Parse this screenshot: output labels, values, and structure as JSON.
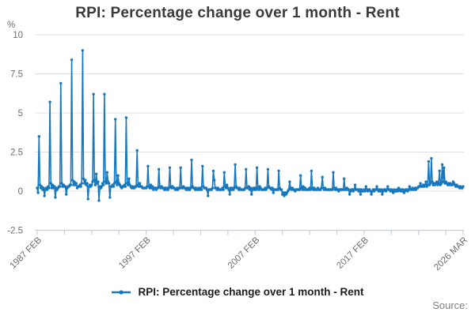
{
  "title": "RPI: Percentage change over 1 month - Rent",
  "y_axis_unit_label": "%",
  "legend": {
    "label": "RPI: Percentage change over 1 month - Rent"
  },
  "source_label": "Source:",
  "colors": {
    "line": "#1778be",
    "grid": "#e0e0e0",
    "axis": "#c6cfe6",
    "title_text": "#3a3a3a",
    "tick_text": "#6e6e6e",
    "legend_text": "#1c1c1c",
    "source_text": "#7f7f7f"
  },
  "chart_data": {
    "type": "line",
    "title": "RPI: Percentage change over 1 month - Rent",
    "series_name": "RPI: Percentage change over 1 month - Rent",
    "xlabel": "",
    "ylabel": "%",
    "grid": "horizontal",
    "legend_position": "bottom",
    "start": "1987-02",
    "end": "2026-03",
    "frequency": "monthly",
    "ylim": [
      -2.5,
      10
    ],
    "y_ticks": [
      -2.5,
      0,
      2.5,
      5,
      7.5,
      10
    ],
    "minor_tick_interval_months": 30,
    "x_tick_labels": [
      {
        "month_index": 0,
        "label": "1987 FEB"
      },
      {
        "month_index": 120,
        "label": "1997 FEB"
      },
      {
        "month_index": 240,
        "label": "2007 FEB"
      },
      {
        "month_index": 360,
        "label": "2017 FEB"
      },
      {
        "month_index": 469,
        "label": "2026 MAR"
      }
    ],
    "annual_april_peaks": {
      "1987": 3.5,
      "1988": 5.7,
      "1989": 6.9,
      "1990": 8.4,
      "1991": 9.0,
      "1992": 6.2,
      "1993": 6.2,
      "1994": 4.6,
      "1995": 4.7,
      "1996": 2.6,
      "2023": 2.1,
      "2024": 1.7
    },
    "values": [
      0.2,
      -0.1,
      3.5,
      0.4,
      0.2,
      0.3,
      0.1,
      0.2,
      -0.3,
      0.1,
      0.2,
      0.1,
      0.3,
      0.2,
      5.7,
      0.5,
      0.2,
      0.4,
      0.2,
      0.3,
      -0.4,
      0.2,
      0.1,
      0.2,
      0.3,
      0.3,
      6.9,
      0.5,
      0.3,
      0.4,
      0.3,
      0.3,
      -0.2,
      0.2,
      0.3,
      0.3,
      0.4,
      0.4,
      8.4,
      0.7,
      0.4,
      0.6,
      0.4,
      0.5,
      0.2,
      0.3,
      0.3,
      0.4,
      0.3,
      0.5,
      9.0,
      0.8,
      0.5,
      0.7,
      0.4,
      0.5,
      -0.5,
      0.3,
      0.4,
      0.3,
      0.4,
      0.6,
      6.2,
      0.7,
      0.4,
      1.1,
      0.5,
      0.6,
      -0.6,
      0.3,
      0.2,
      0.3,
      0.5,
      0.4,
      6.2,
      0.6,
      0.5,
      1.2,
      0.6,
      0.5,
      -0.4,
      0.3,
      0.3,
      0.4,
      0.3,
      0.5,
      4.6,
      0.6,
      0.4,
      1.0,
      0.5,
      0.4,
      0.3,
      0.2,
      0.3,
      0.3,
      0.4,
      0.3,
      4.7,
      0.5,
      0.4,
      0.8,
      0.4,
      0.3,
      0.2,
      0.3,
      0.2,
      0.2,
      0.3,
      0.3,
      2.6,
      0.4,
      0.3,
      0.5,
      0.3,
      0.3,
      0.2,
      0.2,
      0.2,
      0.2,
      0.2,
      0.3,
      1.6,
      0.3,
      0.2,
      0.4,
      0.2,
      0.3,
      0.1,
      0.2,
      0.2,
      0.1,
      0.2,
      0.2,
      1.4,
      0.3,
      0.2,
      0.3,
      0.2,
      0.2,
      0.1,
      0.2,
      0.1,
      0.2,
      0.1,
      0.2,
      1.5,
      0.3,
      0.2,
      0.3,
      0.2,
      0.2,
      0.1,
      0.1,
      0.2,
      0.1,
      0.2,
      0.2,
      1.5,
      0.2,
      0.2,
      0.3,
      0.2,
      0.2,
      0.1,
      0.2,
      0.1,
      0.2,
      0.1,
      0.2,
      2.0,
      0.3,
      0.2,
      0.2,
      0.1,
      0.2,
      0.1,
      0.1,
      0.2,
      0.1,
      0.2,
      0.1,
      1.6,
      0.3,
      0.2,
      0.2,
      0.2,
      0.1,
      -0.3,
      0.1,
      0.1,
      0.1,
      0.1,
      0.2,
      1.3,
      0.7,
      0.2,
      0.2,
      0.1,
      0.2,
      0.1,
      0.1,
      0.1,
      0.1,
      0.2,
      0.1,
      1.2,
      0.3,
      0.2,
      0.4,
      0.2,
      0.1,
      -0.2,
      0.2,
      0.1,
      0.2,
      0.1,
      0.2,
      1.7,
      0.3,
      0.2,
      0.2,
      0.1,
      0.2,
      0.1,
      0.1,
      0.1,
      0.1,
      0.1,
      0.2,
      1.4,
      0.2,
      0.2,
      0.3,
      0.1,
      0.2,
      -0.2,
      0.1,
      0.2,
      0.1,
      0.2,
      0.1,
      1.5,
      0.2,
      0.1,
      0.3,
      0.2,
      0.1,
      0.1,
      0.1,
      0.1,
      0.2,
      0.1,
      0.2,
      1.4,
      0.3,
      0.2,
      0.2,
      0.1,
      0.2,
      -0.1,
      0.1,
      0.1,
      0.1,
      0.1,
      0.1,
      1.3,
      0.2,
      0.1,
      0.1,
      -0.2,
      -0.1,
      -0.3,
      -0.1,
      -0.2,
      -0.1,
      0.0,
      0.1,
      0.6,
      0.2,
      0.1,
      0.2,
      0.1,
      0.1,
      0.0,
      0.1,
      0.1,
      0.1,
      0.1,
      0.1,
      1.0,
      0.2,
      0.1,
      0.3,
      0.1,
      0.2,
      0.1,
      0.1,
      0.1,
      0.1,
      0.2,
      0.1,
      1.3,
      0.2,
      0.1,
      0.2,
      0.1,
      0.1,
      0.1,
      0.2,
      0.1,
      0.1,
      0.1,
      0.2,
      0.9,
      0.2,
      0.1,
      0.2,
      0.1,
      0.1,
      0.1,
      0.1,
      0.1,
      0.1,
      0.1,
      0.1,
      1.2,
      0.2,
      0.1,
      0.2,
      0.1,
      0.1,
      0.0,
      0.1,
      0.1,
      0.1,
      0.1,
      0.1,
      0.8,
      0.1,
      0.1,
      0.2,
      0.1,
      0.1,
      -0.2,
      0.0,
      0.1,
      0.1,
      0.0,
      0.1,
      0.4,
      0.1,
      0.1,
      0.1,
      0.0,
      0.1,
      -0.2,
      0.1,
      0.0,
      0.0,
      0.1,
      0.0,
      0.3,
      0.1,
      0.0,
      0.1,
      0.1,
      0.0,
      -0.2,
      0.0,
      0.1,
      0.0,
      0.1,
      0.1,
      0.3,
      0.1,
      0.0,
      0.1,
      0.0,
      0.1,
      -0.2,
      0.0,
      0.1,
      0.1,
      0.0,
      0.1,
      0.3,
      0.1,
      0.1,
      0.0,
      0.1,
      0.0,
      -0.1,
      0.1,
      0.0,
      0.0,
      0.1,
      0.0,
      0.2,
      0.1,
      0.0,
      0.1,
      0.0,
      0.1,
      -0.1,
      0.0,
      0.1,
      0.1,
      0.0,
      0.1,
      0.3,
      0.1,
      0.1,
      0.2,
      0.1,
      0.1,
      0.2,
      0.1,
      0.2,
      0.2,
      0.3,
      0.3,
      0.5,
      0.3,
      0.3,
      0.4,
      0.3,
      0.4,
      0.6,
      0.3,
      0.4,
      1.9,
      0.4,
      0.5,
      2.1,
      0.6,
      0.4,
      0.5,
      0.4,
      0.5,
      0.6,
      0.4,
      0.5,
      1.3,
      0.4,
      0.5,
      1.7,
      0.6,
      1.5,
      0.5,
      0.6,
      0.5,
      0.4,
      0.5,
      0.4,
      0.5,
      0.4,
      0.4,
      0.6,
      0.5,
      0.4,
      0.3,
      0.4,
      0.3,
      0.3,
      0.2,
      0.3,
      0.2,
      0.2,
      0.3
    ]
  }
}
